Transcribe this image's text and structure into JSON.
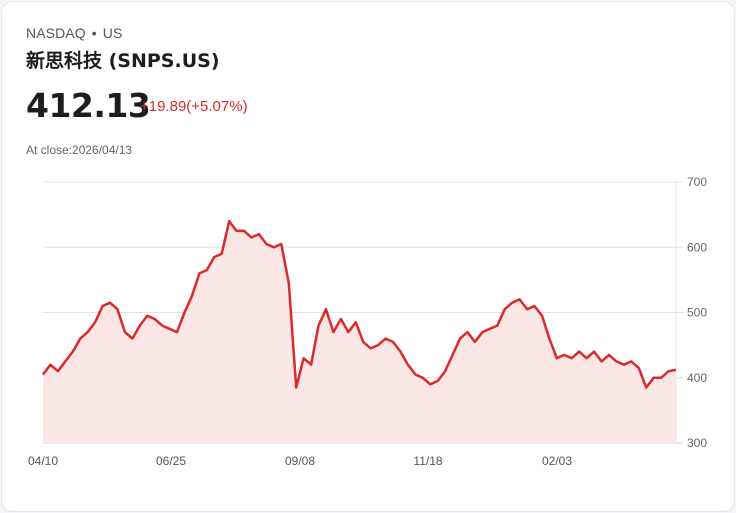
{
  "header": {
    "exchange": "NASDAQ",
    "separator": "•",
    "market": "US",
    "title": "新思科技 (SNPS.US)",
    "price": "412.13",
    "change": "+19.89(+5.07%)",
    "close_label": "At close:2026/04/13"
  },
  "colors": {
    "line": "#d92b2b",
    "fill": "#fbe6e6",
    "grid": "#e3e3e3",
    "text": "#1d1d1f"
  },
  "chart_data": {
    "type": "area",
    "title": "新思科技 (SNPS.US)",
    "xlabel": "",
    "ylabel": "",
    "ylim": [
      300,
      700
    ],
    "yticks": [
      300,
      400,
      500,
      600,
      700
    ],
    "xticks": [
      "04/10",
      "06/25",
      "09/08",
      "11/18",
      "02/03"
    ],
    "grid": true,
    "legend": "none",
    "x": [
      "04/10",
      "04/14",
      "04/17",
      "04/22",
      "04/25",
      "04/30",
      "05/05",
      "05/08",
      "05/13",
      "05/16",
      "05/21",
      "05/26",
      "05/30",
      "06/03",
      "06/06",
      "06/11",
      "06/16",
      "06/20",
      "06/25",
      "07/01",
      "07/07",
      "07/11",
      "07/16",
      "07/21",
      "07/25",
      "07/30",
      "08/04",
      "08/07",
      "08/12",
      "08/15",
      "08/20",
      "08/25",
      "08/29",
      "09/03",
      "09/05",
      "09/08",
      "09/11",
      "09/16",
      "09/19",
      "09/24",
      "09/29",
      "10/02",
      "10/07",
      "10/10",
      "10/15",
      "10/20",
      "10/23",
      "10/28",
      "10/31",
      "11/05",
      "11/10",
      "11/13",
      "11/18",
      "11/21",
      "11/26",
      "12/02",
      "12/05",
      "12/10",
      "12/15",
      "12/18",
      "12/23",
      "12/29",
      "01/02",
      "01/07",
      "01/12",
      "01/15",
      "01/20",
      "01/23",
      "01/28",
      "02/03",
      "02/06",
      "02/11",
      "02/16",
      "02/19",
      "02/24",
      "02/27",
      "03/04",
      "03/09",
      "03/12",
      "03/17",
      "03/20",
      "03/25",
      "03/30",
      "04/02",
      "04/07",
      "04/13"
    ],
    "values": [
      405,
      420,
      410,
      425,
      440,
      460,
      470,
      485,
      510,
      515,
      505,
      470,
      460,
      480,
      495,
      490,
      480,
      475,
      470,
      500,
      525,
      560,
      565,
      585,
      590,
      640,
      625,
      625,
      615,
      620,
      605,
      600,
      605,
      545,
      385,
      430,
      420,
      480,
      505,
      470,
      490,
      470,
      485,
      455,
      445,
      450,
      460,
      455,
      440,
      420,
      405,
      400,
      390,
      395,
      410,
      435,
      460,
      470,
      455,
      470,
      475,
      480,
      505,
      515,
      520,
      505,
      510,
      495,
      460,
      430,
      435,
      430,
      440,
      430,
      440,
      425,
      435,
      425,
      420,
      425,
      415,
      385,
      400,
      400,
      410,
      412
    ]
  }
}
